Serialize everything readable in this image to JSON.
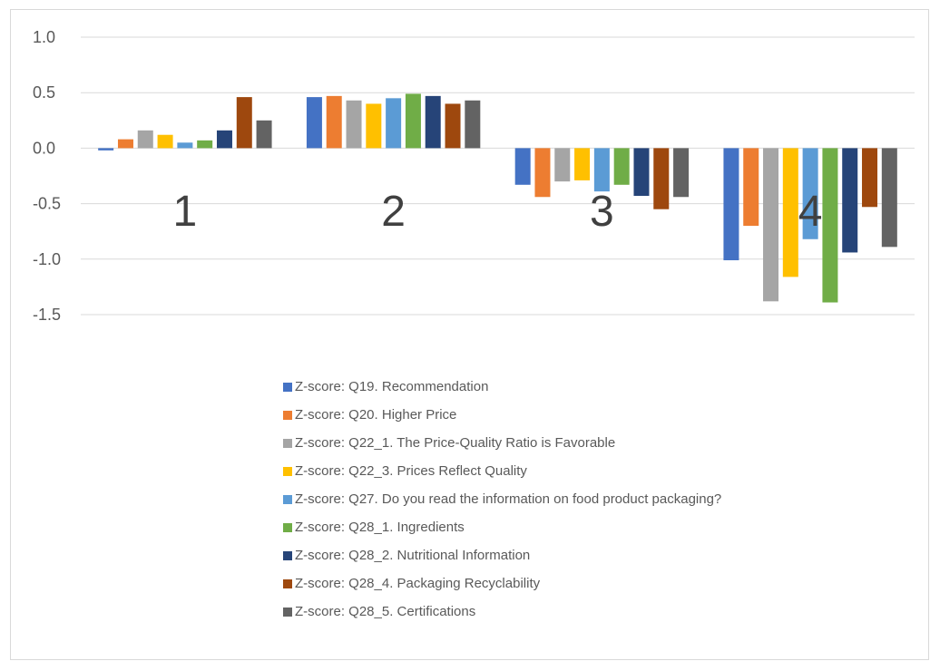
{
  "chart_data": {
    "type": "bar",
    "categories": [
      "1",
      "2",
      "3",
      "4"
    ],
    "ylim": [
      -1.5,
      1.0
    ],
    "yticks": [
      "1.0",
      "0.5",
      "0.0",
      "-0.5",
      "-1.0",
      "-1.5"
    ],
    "grid": true,
    "legend_position": "bottom",
    "series": [
      {
        "name": "Z-score: Q19. Recommendation",
        "color": "#4472C4",
        "values": [
          -0.02,
          0.46,
          -0.33,
          -1.01
        ]
      },
      {
        "name": "Z-score: Q20. Higher Price",
        "color": "#ED7D31",
        "values": [
          0.08,
          0.47,
          -0.44,
          -0.7
        ]
      },
      {
        "name": "Z-score: Q22_1. The Price-Quality Ratio is Favorable",
        "color": "#A5A5A5",
        "values": [
          0.16,
          0.43,
          -0.3,
          -1.38
        ]
      },
      {
        "name": "Z-score: Q22_3. Prices Reflect Quality",
        "color": "#FFC000",
        "values": [
          0.12,
          0.4,
          -0.29,
          -1.16
        ]
      },
      {
        "name": "Z-score: Q27. Do you read the information on food product packaging?",
        "color": "#5B9BD5",
        "values": [
          0.05,
          0.45,
          -0.39,
          -0.82
        ]
      },
      {
        "name": "Z-score: Q28_1. Ingredients",
        "color": "#70AD47",
        "values": [
          0.07,
          0.49,
          -0.33,
          -1.39
        ]
      },
      {
        "name": "Z-score: Q28_2. Nutritional Information",
        "color": "#264478",
        "values": [
          0.16,
          0.47,
          -0.43,
          -0.94
        ]
      },
      {
        "name": "Z-score: Q28_4. Packaging Recyclability",
        "color": "#9E480E",
        "values": [
          0.46,
          0.4,
          -0.55,
          -0.53
        ]
      },
      {
        "name": "Z-score: Q28_5. Certifications",
        "color": "#636363",
        "values": [
          0.25,
          0.43,
          -0.44,
          -0.89
        ]
      }
    ]
  }
}
